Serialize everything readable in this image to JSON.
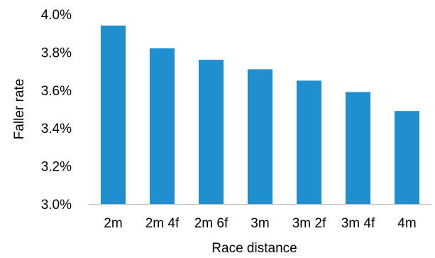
{
  "chart_data": {
    "type": "bar",
    "title": "",
    "xlabel": "Race distance",
    "ylabel": "Faller rate",
    "categories": [
      "2m",
      "2m 4f",
      "2m 6f",
      "3m",
      "3m 2f",
      "3m 4f",
      "4m"
    ],
    "values": [
      3.94,
      3.82,
      3.76,
      3.71,
      3.65,
      3.59,
      3.49
    ],
    "y_ticks": [
      3.0,
      3.2,
      3.4,
      3.6,
      3.8,
      4.0
    ],
    "y_tick_labels": [
      "3.0%",
      "3.2%",
      "3.4%",
      "3.6%",
      "3.8%",
      "4.0%"
    ],
    "ylim": [
      3.0,
      4.0
    ],
    "grid": false,
    "legend": "none",
    "bar_color": "#1f8fd0",
    "axis_color": "#bfbfbf"
  }
}
